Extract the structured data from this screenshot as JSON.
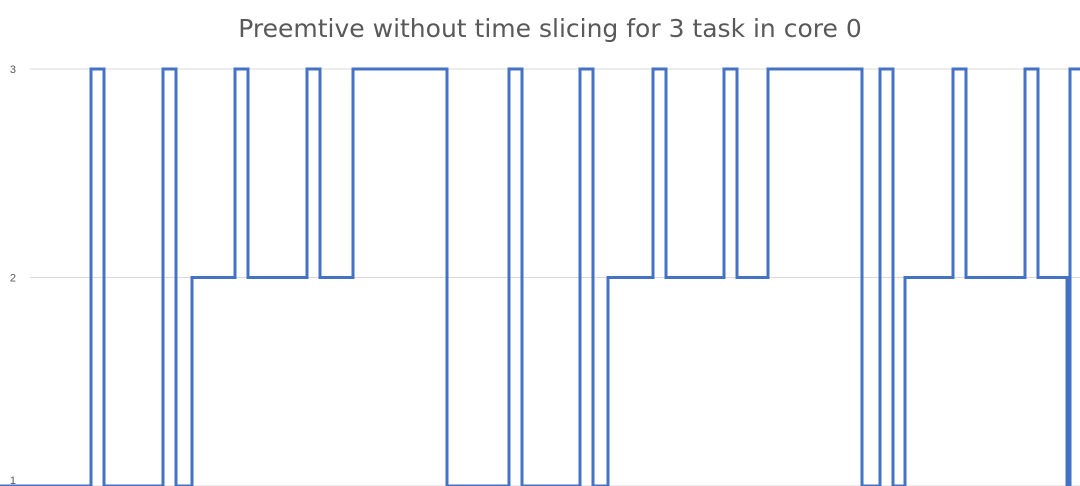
{
  "chart_data": {
    "type": "line",
    "step": true,
    "title": "Preemtive without time slicing for 3 task in core 0",
    "xlabel": "",
    "ylabel": "",
    "ylim": [
      1,
      3
    ],
    "y_ticks": [
      "1",
      "2",
      "3"
    ],
    "grid": true,
    "legend": "none",
    "series": [
      {
        "color": "#4472c4",
        "points": [
          [
            0,
            1
          ],
          [
            91,
            1
          ],
          [
            91,
            3
          ],
          [
            104,
            3
          ],
          [
            104,
            1
          ],
          [
            163,
            1
          ],
          [
            163,
            3
          ],
          [
            176,
            3
          ],
          [
            176,
            1
          ],
          [
            192,
            1
          ],
          [
            192,
            2
          ],
          [
            235,
            2
          ],
          [
            235,
            3
          ],
          [
            248,
            3
          ],
          [
            248,
            2
          ],
          [
            307,
            2
          ],
          [
            307,
            3
          ],
          [
            320,
            3
          ],
          [
            320,
            2
          ],
          [
            353,
            2
          ],
          [
            353,
            3
          ],
          [
            447,
            3
          ],
          [
            447,
            1
          ],
          [
            509,
            1
          ],
          [
            509,
            3
          ],
          [
            522,
            3
          ],
          [
            522,
            1
          ],
          [
            580,
            1
          ],
          [
            580,
            3
          ],
          [
            593,
            3
          ],
          [
            593,
            1
          ],
          [
            608,
            1
          ],
          [
            608,
            2
          ],
          [
            653,
            2
          ],
          [
            653,
            3
          ],
          [
            666,
            3
          ],
          [
            666,
            2
          ],
          [
            724,
            2
          ],
          [
            724,
            3
          ],
          [
            737,
            3
          ],
          [
            737,
            2
          ],
          [
            768,
            2
          ],
          [
            768,
            3
          ],
          [
            862,
            3
          ],
          [
            862,
            1
          ],
          [
            880,
            1
          ],
          [
            880,
            3
          ],
          [
            893,
            3
          ],
          [
            893,
            1
          ],
          [
            905,
            1
          ],
          [
            905,
            2
          ],
          [
            953,
            2
          ],
          [
            953,
            3
          ],
          [
            966,
            3
          ],
          [
            966,
            2
          ],
          [
            1025,
            2
          ],
          [
            1025,
            3
          ],
          [
            1038,
            3
          ],
          [
            1038,
            2
          ],
          [
            1067,
            2
          ],
          [
            1067,
            1
          ],
          [
            1070,
            1
          ],
          [
            1070,
            3
          ],
          [
            1080,
            3
          ]
        ]
      }
    ]
  }
}
